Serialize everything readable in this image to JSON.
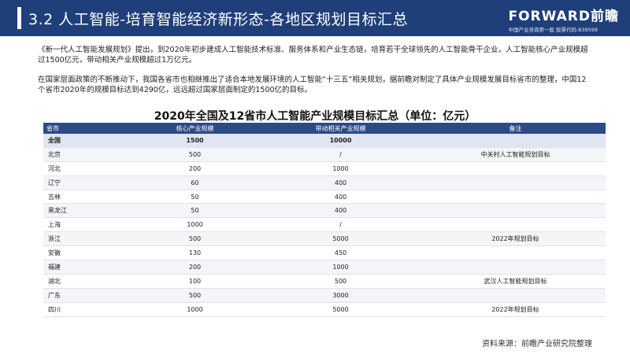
{
  "header": {
    "title": "3.2 人工智能-培育智能经济新形态-各地区规划目标汇总",
    "logo_main": "FORWARD前瞻",
    "logo_sub": "中国产业咨询第一股 股票代码:839599"
  },
  "paragraphs": [
    "《新一代人工智能发展规划》提出，到2020年初步建成人工智能技术标准、服务体系和产业生态链，培育若干全球领先的人工智能骨干企业，人工智能核心产业规模超过1500亿元，带动相关产业规模超过1万亿元。",
    "在国家层面政策的不断推动下，我国各省市也相继推出了适合本地发展环境的人工智能“十三五”相关规划，据前瞻对制定了具体产业规模发展目标省市的整理，中国12个省市2020年的规模目标达到4290亿，远远超过国家层面制定的1500亿的目标。"
  ],
  "table": {
    "title": "2020年全国及12省市人工智能产业规模目标汇总（单位：亿元）",
    "headers": [
      "省市",
      "核心产业规模",
      "带动相关产业规模",
      "备注"
    ],
    "rows": [
      {
        "province": "全国",
        "core": "1500",
        "related": "10000",
        "note": ""
      },
      {
        "province": "北京",
        "core": "500",
        "related": "/",
        "note": "中关村人工智能规划目标"
      },
      {
        "province": "河北",
        "core": "200",
        "related": "1000",
        "note": ""
      },
      {
        "province": "辽宁",
        "core": "60",
        "related": "400",
        "note": ""
      },
      {
        "province": "吉林",
        "core": "50",
        "related": "400",
        "note": ""
      },
      {
        "province": "黑龙江",
        "core": "50",
        "related": "400",
        "note": ""
      },
      {
        "province": "上海",
        "core": "1000",
        "related": "/",
        "note": ""
      },
      {
        "province": "浙江",
        "core": "500",
        "related": "5000",
        "note": "2022年规划目标"
      },
      {
        "province": "安徽",
        "core": "130",
        "related": "450",
        "note": ""
      },
      {
        "province": "福建",
        "core": "200",
        "related": "1000",
        "note": ""
      },
      {
        "province": "湖北",
        "core": "100",
        "related": "500",
        "note": "武汉人工智能规划目标"
      },
      {
        "province": "广东",
        "core": "500",
        "related": "3000",
        "note": ""
      },
      {
        "province": "四川",
        "core": "1000",
        "related": "5000",
        "note": "2022年规划目标"
      }
    ]
  },
  "source": "资料来源：前瞻产业研究院整理",
  "colors": {
    "header_bg": "#1f3f7a",
    "table_header_bg": "#2d4a88",
    "total_row_bg": "#dfe6f1"
  }
}
